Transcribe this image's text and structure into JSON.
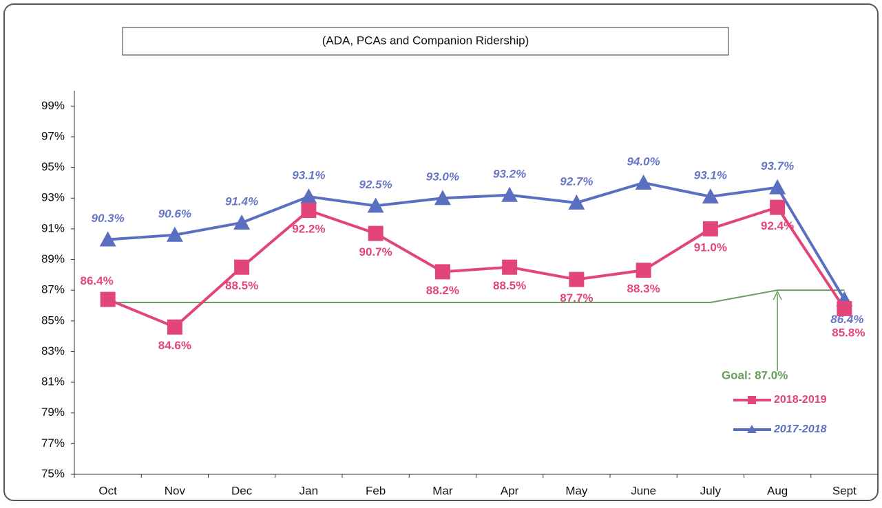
{
  "chart_data": {
    "type": "line",
    "title": "(ADA, PCAs and Companion Ridership)",
    "categories": [
      "Oct",
      "Nov",
      "Dec",
      "Jan",
      "Feb",
      "Mar",
      "Apr",
      "May",
      "June",
      "July",
      "Aug",
      "Sept"
    ],
    "series": [
      {
        "name": "2018-2019",
        "color": "#e2457a",
        "marker": "square",
        "values": [
          86.4,
          84.6,
          88.5,
          92.2,
          90.7,
          88.2,
          88.5,
          87.7,
          88.3,
          91.0,
          92.4,
          85.8
        ],
        "value_labels": [
          "86.4%",
          "84.6%",
          "88.5%",
          "92.2%",
          "90.7%",
          "88.2%",
          "88.5%",
          "87.7%",
          "88.3%",
          "91.0%",
          "92.4%",
          "85.8%"
        ]
      },
      {
        "name": "2017-2018",
        "color": "#5b6fc0",
        "marker": "triangle",
        "values": [
          90.3,
          90.6,
          91.4,
          93.1,
          92.5,
          93.0,
          93.2,
          92.7,
          94.0,
          93.1,
          93.7,
          86.4
        ],
        "value_labels": [
          "90.3%",
          "90.6%",
          "91.4%",
          "93.1%",
          "92.5%",
          "93.0%",
          "93.2%",
          "92.7%",
          "94.0%",
          "93.1%",
          "93.7%",
          "86.4%"
        ]
      }
    ],
    "goal": {
      "values": [
        86.2,
        86.2,
        86.2,
        86.2,
        86.2,
        86.2,
        86.2,
        86.2,
        86.2,
        86.2,
        87.0,
        87.0
      ],
      "color": "#6a9e5c",
      "label": "Goal: 87.0%"
    },
    "ylim": [
      75,
      100
    ],
    "yticks": [
      {
        "value": 75,
        "label": "75%"
      },
      {
        "value": 77,
        "label": "77%"
      },
      {
        "value": 79,
        "label": "79%"
      },
      {
        "value": 81,
        "label": "81%"
      },
      {
        "value": 83,
        "label": "83%"
      },
      {
        "value": 85,
        "label": "85%"
      },
      {
        "value": 87,
        "label": "87%"
      },
      {
        "value": 89,
        "label": "89%"
      },
      {
        "value": 91,
        "label": "91%"
      },
      {
        "value": 93,
        "label": "93%"
      },
      {
        "value": 95,
        "label": "95%"
      },
      {
        "value": 97,
        "label": "97%"
      },
      {
        "value": 99,
        "label": "99%"
      }
    ],
    "grid": false
  }
}
